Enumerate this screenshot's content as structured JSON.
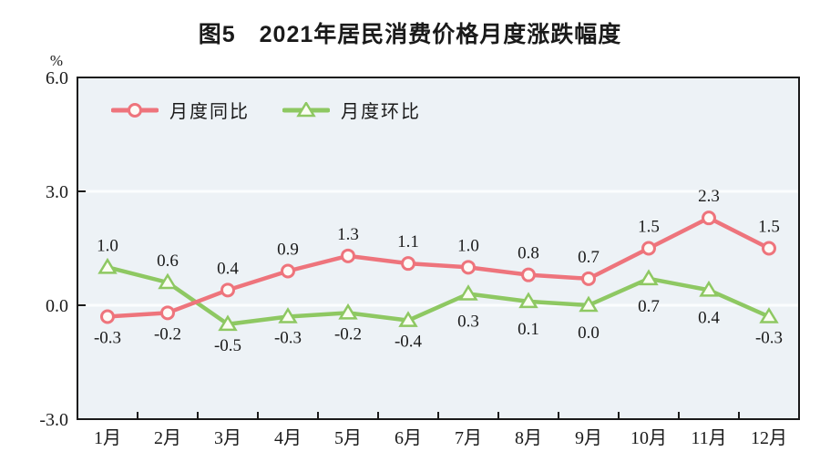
{
  "title": "图5　2021年居民消费价格月度涨跌幅度",
  "chart_data": {
    "type": "line",
    "categories": [
      "1月",
      "2月",
      "3月",
      "4月",
      "5月",
      "6月",
      "7月",
      "8月",
      "9月",
      "10月",
      "11月",
      "12月"
    ],
    "series": [
      {
        "name": "月度同比",
        "marker": "circle",
        "color": "#ee747c",
        "marker_fill": "#fdfaf6",
        "values": [
          -0.3,
          -0.2,
          0.4,
          0.9,
          1.3,
          1.1,
          1.0,
          0.8,
          0.7,
          1.5,
          2.3,
          1.5
        ],
        "label_side": [
          "below",
          "below",
          "above",
          "above",
          "above",
          "above",
          "above",
          "above",
          "above",
          "above",
          "above",
          "above"
        ]
      },
      {
        "name": "月度环比",
        "marker": "triangle",
        "color": "#8ec862",
        "marker_fill": "#fbfdf3",
        "values": [
          1.0,
          0.6,
          -0.5,
          -0.3,
          -0.2,
          -0.4,
          0.3,
          0.1,
          0.0,
          0.7,
          0.4,
          -0.3
        ],
        "label_side": [
          "above",
          "above",
          "below",
          "below",
          "below",
          "below",
          "below",
          "below",
          "below",
          "below",
          "below",
          "below"
        ]
      }
    ],
    "ylabel": "%",
    "yticks": [
      6.0,
      3.0,
      0.0,
      -3.0
    ],
    "ytick_labels": [
      "6.0",
      "3.0",
      "0.0",
      "-3.0"
    ],
    "ylim": [
      -3,
      6
    ],
    "grid_values": [
      3.0,
      0.0
    ],
    "grid_on": true,
    "legend_position": "top-left-inside",
    "plot_bg": "#edf2f6",
    "grid_color": "#fbfdfe",
    "axis_color": "#1a1a1a",
    "label_color": "#1a1a1a"
  }
}
